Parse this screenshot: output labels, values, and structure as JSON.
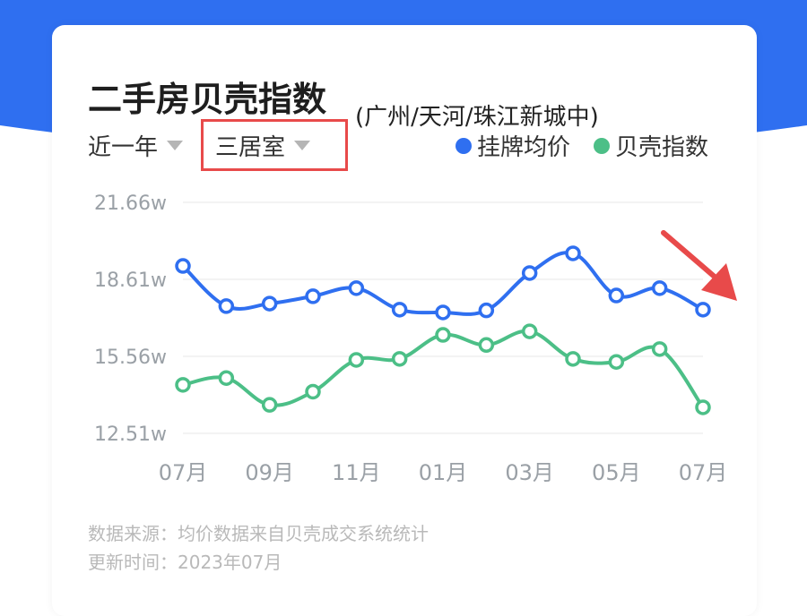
{
  "header": {
    "title": "二手房贝壳指数",
    "subtitle": "(广州/天河/珠江新城中)"
  },
  "filters": {
    "period": "近一年",
    "room_type": "三居室"
  },
  "legend": {
    "item1": "挂牌均价",
    "item2": "贝壳指数"
  },
  "footer": {
    "source": "数据来源：均价数据来自贝壳成交系统统计",
    "updated": "更新时间：2023年07月"
  },
  "colors": {
    "blue": "#2f6ff0",
    "green": "#4cbf87",
    "highlight": "#e84a4a"
  },
  "chart_data": {
    "type": "line",
    "y_tick_labels": [
      "21.66w",
      "18.61w",
      "15.56w",
      "12.51w"
    ],
    "y_tick_values": [
      21.66,
      18.61,
      15.56,
      12.51
    ],
    "ylim": [
      12.51,
      21.66
    ],
    "x_tick_labels": [
      "07月",
      "09月",
      "11月",
      "01月",
      "03月",
      "05月",
      "07月"
    ],
    "series": [
      {
        "name": "挂牌均价",
        "color": "#2f6ff0",
        "values": [
          19.14,
          17.55,
          17.65,
          17.94,
          18.26,
          17.41,
          17.3,
          17.38,
          18.86,
          19.64,
          17.97,
          18.26,
          17.41
        ]
      },
      {
        "name": "贝壳指数",
        "color": "#4cbf87",
        "values": [
          14.43,
          14.7,
          13.64,
          14.16,
          15.42,
          15.46,
          16.41,
          16.01,
          16.55,
          15.46,
          15.34,
          15.85,
          13.54
        ]
      }
    ]
  }
}
